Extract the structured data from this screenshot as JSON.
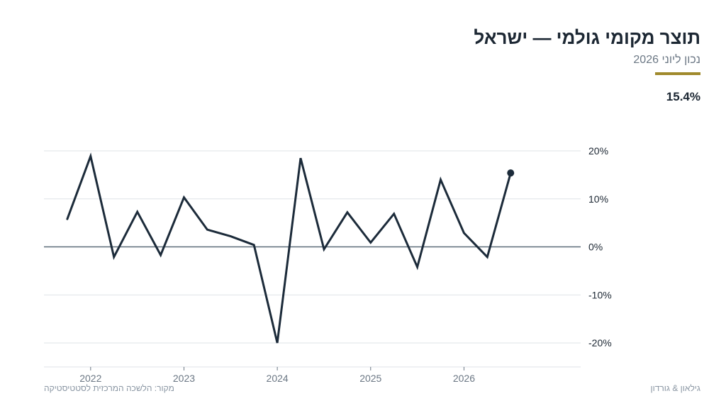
{
  "header": {
    "title": "תוצר מקומי גולמי — ישראל",
    "subtitle": "נכון ליוני 2026",
    "latest_value": "15.4%"
  },
  "footer": {
    "source": "מקור: הלשכה המרכזית לסטטיסטיקה",
    "brand": "גילאון & גורדון"
  },
  "colors": {
    "line": "#1c2b3a",
    "grid": "#dfe3e7",
    "zero_line": "#5c6b78",
    "accent": "#a08a2c",
    "axis_text": "#6b7784",
    "tick_text": "#1c2733"
  },
  "chart_data": {
    "type": "line",
    "title": "תוצר מקומי גולמי — ישראל",
    "subtitle": "נכון ליוני 2026",
    "xlabel": "",
    "ylabel": "",
    "y_axis_side": "right",
    "grid": true,
    "xlim": [
      "2021-07",
      "2027-04"
    ],
    "ylim": [
      -25,
      20
    ],
    "y_ticks": [
      20,
      10,
      0,
      -10,
      -20
    ],
    "y_tick_labels": [
      "20%",
      "10%",
      "0%",
      "-10%",
      "-20%"
    ],
    "x_ticks": [
      "2022-01",
      "2023-01",
      "2024-01",
      "2025-01",
      "2026-01"
    ],
    "x_tick_labels": [
      "2022",
      "2023",
      "2024",
      "2025",
      "2026"
    ],
    "series": [
      {
        "x": [
          "2021-10",
          "2022-01",
          "2022-04",
          "2022-07",
          "2022-10",
          "2023-01",
          "2023-04",
          "2023-07",
          "2023-10",
          "2024-01",
          "2024-04",
          "2024-07",
          "2024-10",
          "2025-01",
          "2025-04",
          "2025-07",
          "2025-10",
          "2026-01",
          "2026-04",
          "2026-07"
        ],
        "values": [
          5.8,
          18.9,
          -2.1,
          7.3,
          -1.7,
          10.3,
          3.6,
          2.2,
          0.4,
          -20.0,
          18.5,
          -0.5,
          7.2,
          0.9,
          6.9,
          -4.2,
          14.0,
          2.9,
          -2.1,
          15.4
        ],
        "highlight_last": true
      }
    ]
  }
}
